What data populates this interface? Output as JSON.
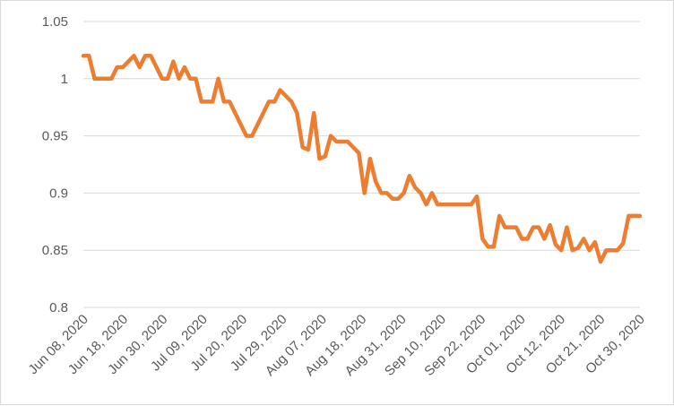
{
  "chart_data": {
    "type": "line",
    "title": "",
    "xlabel": "",
    "ylabel": "",
    "ylim": [
      0.8,
      1.05
    ],
    "yticks": [
      "0.8",
      "0.85",
      "0.9",
      "0.95",
      "1",
      "1.05"
    ],
    "grid": true,
    "legend": "none",
    "x_tick_labels": [
      "Jun 08, 2020",
      "Jun 18, 2020",
      "Jun 30, 2020",
      "Jul 09, 2020",
      "Jul 20, 2020",
      "Jul 29, 2020",
      "Aug 07, 2020",
      "Aug 18, 2020",
      "Aug 31, 2020",
      "Sep 10, 2020",
      "Sep 22, 2020",
      "Oct 01, 2020",
      "Oct 12, 2020",
      "Oct 21, 2020",
      "Oct 30, 2020"
    ],
    "series": [
      {
        "color": "#ed7d31",
        "values": [
          1.02,
          1.02,
          1.0,
          1.0,
          1.0,
          1.0,
          1.01,
          1.01,
          1.015,
          1.02,
          1.01,
          1.02,
          1.02,
          1.01,
          1.0,
          1.0,
          1.015,
          1.0,
          1.01,
          1.0,
          1.0,
          0.98,
          0.98,
          0.98,
          1.0,
          0.98,
          0.98,
          0.97,
          0.96,
          0.95,
          0.95,
          0.96,
          0.97,
          0.98,
          0.98,
          0.99,
          0.985,
          0.98,
          0.97,
          0.94,
          0.938,
          0.97,
          0.93,
          0.932,
          0.95,
          0.945,
          0.945,
          0.945,
          0.94,
          0.935,
          0.9,
          0.93,
          0.91,
          0.9,
          0.9,
          0.895,
          0.895,
          0.9,
          0.915,
          0.905,
          0.9,
          0.89,
          0.9,
          0.89,
          0.89,
          0.89,
          0.89,
          0.89,
          0.89,
          0.89,
          0.897,
          0.86,
          0.853,
          0.853,
          0.88,
          0.87,
          0.87,
          0.87,
          0.86,
          0.86,
          0.87,
          0.87,
          0.86,
          0.872,
          0.855,
          0.85,
          0.87,
          0.85,
          0.852,
          0.86,
          0.85,
          0.857,
          0.84,
          0.85,
          0.85,
          0.85,
          0.856,
          0.88,
          0.88,
          0.88
        ]
      }
    ]
  }
}
